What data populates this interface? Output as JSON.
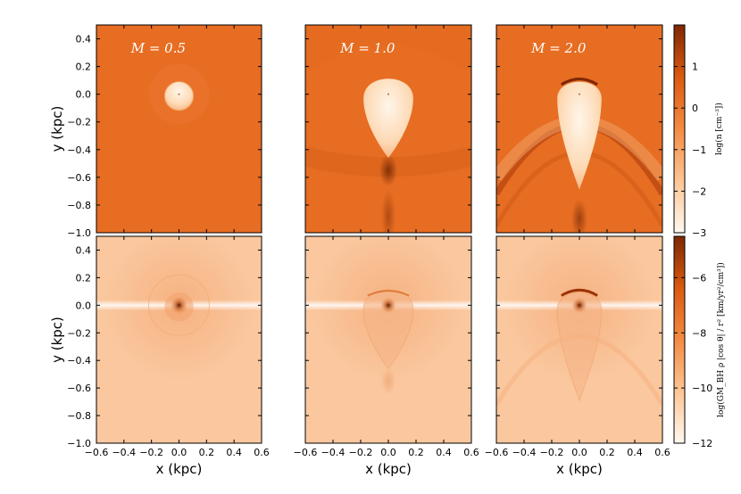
{
  "chart_data": {
    "type": "heatmap",
    "panels": [
      {
        "row": 0,
        "col": 0,
        "label": "M = 0.5",
        "mach": 0.5
      },
      {
        "row": 0,
        "col": 1,
        "label": "M = 1.0",
        "mach": 1.0
      },
      {
        "row": 0,
        "col": 2,
        "label": "M = 2.0",
        "mach": 2.0
      },
      {
        "row": 1,
        "col": 0,
        "label": "",
        "mach": 0.5
      },
      {
        "row": 1,
        "col": 1,
        "label": "",
        "mach": 1.0
      },
      {
        "row": 1,
        "col": 2,
        "label": "",
        "mach": 2.0
      }
    ],
    "xlabel": "x (kpc)",
    "ylabel": "y (kpc)",
    "xlim": [
      -0.6,
      0.6
    ],
    "ylim": [
      -1.0,
      0.5
    ],
    "xticks": [
      "−0.6",
      "−0.4",
      "−0.2",
      "0.0",
      "0.2",
      "0.4",
      "0.6"
    ],
    "xtick_values": [
      -0.6,
      -0.4,
      -0.2,
      0.0,
      0.2,
      0.4,
      0.6
    ],
    "yticks": [
      "0.4",
      "0.2",
      "0.0",
      "−0.2",
      "−0.4",
      "−0.6",
      "−0.8",
      "−1.0"
    ],
    "ytick_values": [
      0.4,
      0.2,
      0.0,
      -0.2,
      -0.4,
      -0.6,
      -0.8,
      -1.0
    ],
    "colorbars": [
      {
        "label": "log(n [cm⁻³])",
        "range": [
          -3,
          2
        ],
        "ticks": [
          "1",
          "0",
          "−1",
          "−2",
          "−3"
        ],
        "tick_values": [
          1,
          0,
          -1,
          -2,
          -3
        ]
      },
      {
        "label": "log(GM_BH ρ |cos θ| / r² [km/yr²/cm³])",
        "range": [
          -12,
          -4.5
        ],
        "ticks": [
          "−6",
          "−8",
          "−10",
          "−12"
        ],
        "tick_values": [
          -6,
          -8,
          -10,
          -12
        ]
      }
    ],
    "colormap": {
      "low": "#fff8f0",
      "mid": "#ee6c1f",
      "high": "#7f2704"
    },
    "grid": false
  }
}
